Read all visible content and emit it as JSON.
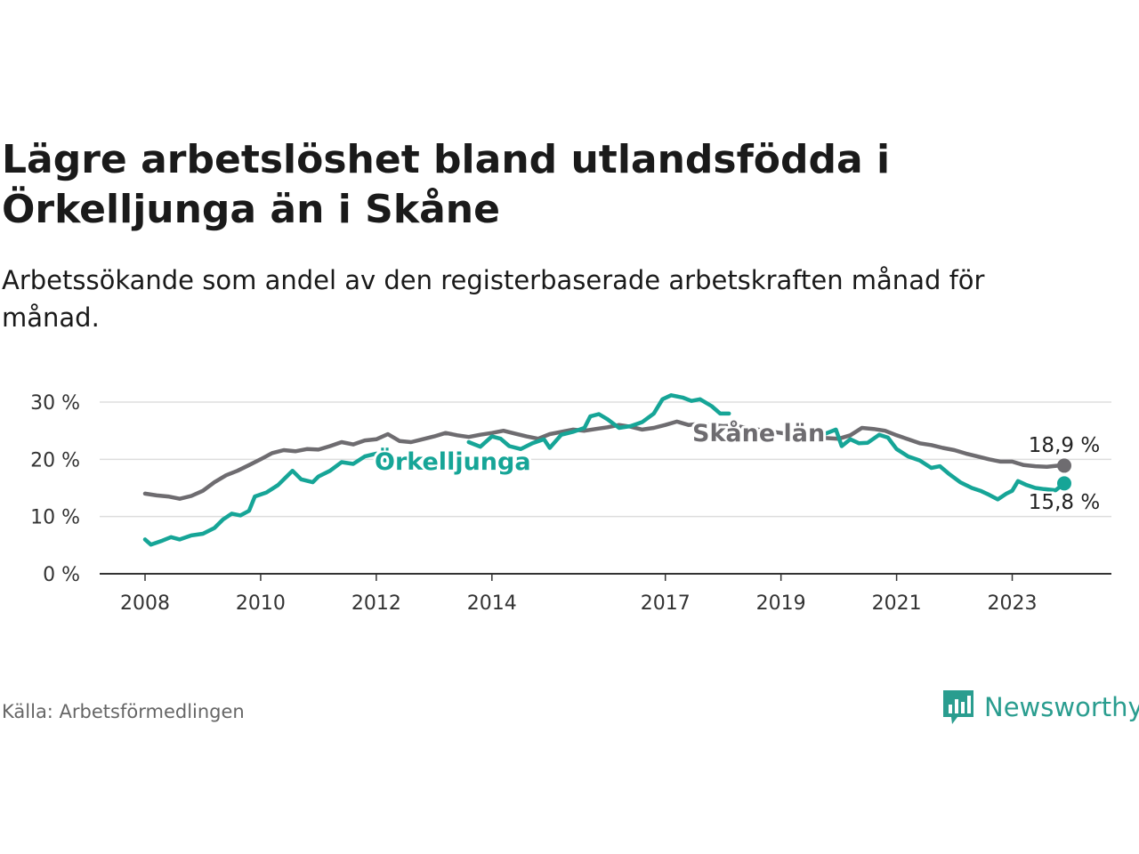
{
  "header": {
    "title": "Lägre arbetslöshet bland utlandsfödda i Örkelljunga än i Skåne",
    "subtitle": "Arbetssökande som andel av den registerbaserade arbetskraften månad för månad."
  },
  "footer": {
    "source": "Källa: Arbetsförmedlingen",
    "brand": "Newsworthy"
  },
  "colors": {
    "skane": "#6e6c70",
    "orkelljunga": "#16a597",
    "grid": "#dddddd",
    "axis": "#333333",
    "brand": "#2a9d8f"
  },
  "chart_data": {
    "type": "line",
    "title": "Lägre arbetslöshet bland utlandsfödda i Örkelljunga än i Skåne",
    "ylabel": "",
    "xlabel": "",
    "ylim": [
      0,
      30
    ],
    "xlim": [
      2007.8,
      2025.4
    ],
    "yticks": [
      0,
      10,
      20,
      30
    ],
    "ytick_labels": [
      "0 %",
      "10 %",
      "20 %",
      "30 %"
    ],
    "xticks": [
      2008,
      2010,
      2012,
      2014,
      2017,
      2019,
      2021,
      2023
    ],
    "xtick_labels": [
      "2008",
      "2010",
      "2012",
      "2014",
      "2017",
      "2019",
      "2021",
      "2023"
    ],
    "series": [
      {
        "name": "Skåne län",
        "label": "Skåne län",
        "end_label": "18,9 %",
        "points": [
          [
            2008.0,
            14.0
          ],
          [
            2008.2,
            13.7
          ],
          [
            2008.4,
            13.5
          ],
          [
            2008.6,
            13.1
          ],
          [
            2008.8,
            13.6
          ],
          [
            2009.0,
            14.5
          ],
          [
            2009.2,
            16.0
          ],
          [
            2009.4,
            17.2
          ],
          [
            2009.6,
            18.0
          ],
          [
            2009.8,
            19.0
          ],
          [
            2010.0,
            20.0
          ],
          [
            2010.2,
            21.1
          ],
          [
            2010.4,
            21.6
          ],
          [
            2010.6,
            21.4
          ],
          [
            2010.8,
            21.8
          ],
          [
            2011.0,
            21.7
          ],
          [
            2011.2,
            22.3
          ],
          [
            2011.4,
            23.0
          ],
          [
            2011.6,
            22.6
          ],
          [
            2011.8,
            23.3
          ],
          [
            2012.0,
            23.5
          ],
          [
            2012.2,
            24.4
          ],
          [
            2012.4,
            23.2
          ],
          [
            2012.6,
            23.0
          ],
          [
            2012.8,
            23.5
          ],
          [
            2013.0,
            24.0
          ],
          [
            2013.2,
            24.6
          ],
          [
            2013.4,
            24.2
          ],
          [
            2013.6,
            23.9
          ],
          [
            2013.8,
            24.3
          ],
          [
            2014.0,
            24.6
          ],
          [
            2014.2,
            25.0
          ],
          [
            2014.4,
            24.5
          ],
          [
            2014.6,
            24.0
          ],
          [
            2014.8,
            23.6
          ],
          [
            2015.0,
            24.4
          ],
          [
            2015.2,
            24.8
          ],
          [
            2015.4,
            25.2
          ],
          [
            2015.6,
            25.0
          ],
          [
            2015.8,
            25.3
          ],
          [
            2016.0,
            25.6
          ],
          [
            2016.2,
            26.0
          ],
          [
            2016.4,
            25.7
          ],
          [
            2016.6,
            25.2
          ],
          [
            2016.8,
            25.5
          ],
          [
            2017.0,
            26.0
          ],
          [
            2017.2,
            26.6
          ],
          [
            2017.4,
            26.0
          ],
          [
            2017.6,
            26.2
          ],
          [
            2017.8,
            26.0
          ],
          [
            2018.0,
            25.8
          ],
          [
            2018.2,
            25.9
          ],
          [
            2018.4,
            25.5
          ],
          [
            2018.6,
            25.2
          ],
          [
            2018.8,
            24.9
          ],
          [
            2019.0,
            24.6
          ],
          [
            2019.2,
            24.3
          ],
          [
            2019.4,
            24.0
          ],
          [
            2019.6,
            23.8
          ],
          [
            2019.8,
            23.7
          ],
          [
            2020.0,
            23.6
          ],
          [
            2020.2,
            24.2
          ],
          [
            2020.4,
            25.5
          ],
          [
            2020.6,
            25.3
          ],
          [
            2020.8,
            25.0
          ],
          [
            2021.0,
            24.2
          ],
          [
            2021.2,
            23.5
          ],
          [
            2021.4,
            22.8
          ],
          [
            2021.6,
            22.5
          ],
          [
            2021.8,
            22.0
          ],
          [
            2022.0,
            21.6
          ],
          [
            2022.2,
            21.0
          ],
          [
            2022.4,
            20.5
          ],
          [
            2022.6,
            20.0
          ],
          [
            2022.8,
            19.6
          ],
          [
            2023.0,
            19.6
          ],
          [
            2023.2,
            19.0
          ],
          [
            2023.4,
            18.8
          ],
          [
            2023.6,
            18.7
          ],
          [
            2023.8,
            18.9
          ],
          [
            2023.9,
            18.9
          ]
        ]
      },
      {
        "name": "Örkelljunga",
        "label": "Örkelljunga",
        "end_label": "15,8 %",
        "points": [
          [
            2008.0,
            6.0
          ],
          [
            2008.1,
            5.1
          ],
          [
            2008.3,
            5.8
          ],
          [
            2008.45,
            6.4
          ],
          [
            2008.6,
            6.0
          ],
          [
            2008.8,
            6.7
          ],
          [
            2009.0,
            7.0
          ],
          [
            2009.2,
            8.0
          ],
          [
            2009.35,
            9.5
          ],
          [
            2009.5,
            10.5
          ],
          [
            2009.65,
            10.2
          ],
          [
            2009.8,
            11.0
          ],
          [
            2009.9,
            13.5
          ],
          [
            2010.1,
            14.2
          ],
          [
            2010.3,
            15.5
          ],
          [
            2010.45,
            17.0
          ],
          [
            2010.55,
            18.0
          ],
          [
            2010.7,
            16.5
          ],
          [
            2010.9,
            16.0
          ],
          [
            2011.0,
            17.0
          ],
          [
            2011.2,
            18.0
          ],
          [
            2011.4,
            19.5
          ],
          [
            2011.6,
            19.2
          ],
          [
            2011.8,
            20.5
          ],
          [
            2012.0,
            21.0
          ],
          [
            2012.15,
            19.8
          ],
          null,
          [
            2013.6,
            23.0
          ],
          [
            2013.8,
            22.2
          ],
          [
            2014.0,
            24.0
          ],
          [
            2014.15,
            23.6
          ],
          [
            2014.3,
            22.3
          ],
          [
            2014.5,
            21.8
          ],
          [
            2014.7,
            22.8
          ],
          [
            2014.9,
            23.5
          ],
          [
            2015.0,
            22.0
          ],
          [
            2015.2,
            24.3
          ],
          [
            2015.4,
            24.8
          ],
          [
            2015.6,
            25.5
          ],
          [
            2015.7,
            27.5
          ],
          [
            2015.85,
            27.9
          ],
          [
            2016.0,
            27.0
          ],
          [
            2016.2,
            25.5
          ],
          [
            2016.4,
            25.8
          ],
          [
            2016.6,
            26.5
          ],
          [
            2016.8,
            28.0
          ],
          [
            2016.95,
            30.5
          ],
          [
            2017.1,
            31.2
          ],
          [
            2017.3,
            30.8
          ],
          [
            2017.45,
            30.2
          ],
          [
            2017.6,
            30.5
          ],
          [
            2017.8,
            29.3
          ],
          [
            2017.95,
            28.0
          ],
          [
            2018.1,
            28.0
          ],
          null,
          [
            2019.6,
            23.8
          ],
          [
            2019.8,
            24.6
          ],
          [
            2019.95,
            25.2
          ],
          [
            2020.05,
            22.3
          ],
          [
            2020.2,
            23.5
          ],
          [
            2020.35,
            22.8
          ],
          [
            2020.5,
            22.9
          ],
          [
            2020.7,
            24.3
          ],
          [
            2020.85,
            23.8
          ],
          [
            2021.0,
            21.8
          ],
          [
            2021.2,
            20.5
          ],
          [
            2021.4,
            19.8
          ],
          [
            2021.6,
            18.5
          ],
          [
            2021.75,
            18.8
          ],
          [
            2021.9,
            17.5
          ],
          [
            2022.1,
            16.0
          ],
          [
            2022.3,
            15.0
          ],
          [
            2022.45,
            14.5
          ],
          [
            2022.6,
            13.8
          ],
          [
            2022.75,
            13.0
          ],
          [
            2022.9,
            14.0
          ],
          [
            2023.0,
            14.5
          ],
          [
            2023.1,
            16.2
          ],
          [
            2023.25,
            15.5
          ],
          [
            2023.4,
            15.0
          ],
          [
            2023.55,
            14.8
          ],
          [
            2023.75,
            14.6
          ],
          [
            2023.9,
            15.8
          ]
        ]
      }
    ]
  }
}
